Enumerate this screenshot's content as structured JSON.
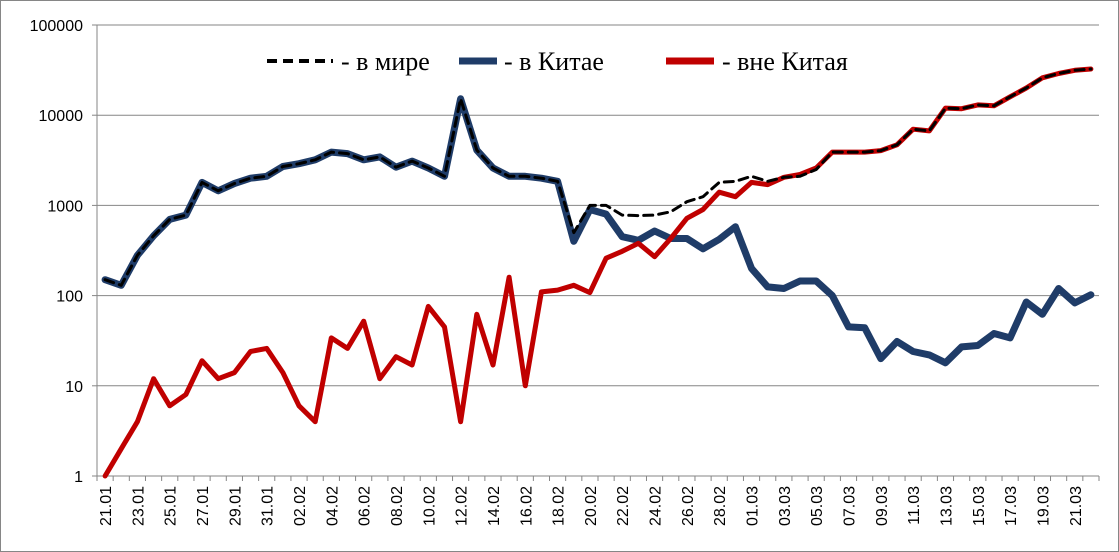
{
  "chart_data": {
    "type": "line",
    "scale": "log",
    "ylim": [
      1,
      100000
    ],
    "yticks": [
      "1",
      "10",
      "100",
      "1000",
      "10000",
      "100000"
    ],
    "grid": "horizontal",
    "legend_position": "top",
    "legend": [
      {
        "text": "- в мире",
        "color": "#000000",
        "style": "dashed"
      },
      {
        "text": "-  в Китае",
        "color": "#1F3C68",
        "style": "solid"
      },
      {
        "text": "- вне Китая",
        "color": "#C00000",
        "style": "solid"
      }
    ],
    "x": [
      "21.01",
      "22.01",
      "23.01",
      "24.01",
      "25.01",
      "26.01",
      "27.01",
      "28.01",
      "29.01",
      "30.01",
      "31.01",
      "01.02",
      "02.02",
      "03.02",
      "04.02",
      "05.02",
      "06.02",
      "07.02",
      "08.02",
      "09.02",
      "10.02",
      "11.02",
      "12.02",
      "13.02",
      "14.02",
      "15.02",
      "16.02",
      "17.02",
      "18.02",
      "19.02",
      "20.02",
      "21.02",
      "22.02",
      "23.02",
      "24.02",
      "25.02",
      "26.02",
      "27.02",
      "28.02",
      "29.02",
      "01.03",
      "02.03",
      "03.03",
      "04.03",
      "05.03",
      "06.03",
      "07.03",
      "08.03",
      "09.03",
      "10.03",
      "11.03",
      "12.03",
      "13.03",
      "14.03",
      "15.03",
      "16.03",
      "17.03",
      "18.03",
      "19.03",
      "20.03",
      "21.03",
      "22.03"
    ],
    "xtick_labels": [
      "21.01",
      "23.01",
      "25.01",
      "27.01",
      "29.01",
      "31.01",
      "02.02",
      "04.02",
      "06.02",
      "08.02",
      "10.02",
      "12.02",
      "14.02",
      "16.02",
      "18.02",
      "20.02",
      "22.02",
      "24.02",
      "26.02",
      "28.02",
      "01.03",
      "03.03",
      "05.03",
      "07.03",
      "09.03",
      "11.03",
      "13.03",
      "15.03",
      "17.03",
      "19.03",
      "21.03"
    ],
    "series": [
      {
        "name": "- в мире",
        "color": "#000000",
        "values": [
          150,
          130,
          280,
          460,
          700,
          780,
          1800,
          1450,
          1750,
          2000,
          2100,
          2700,
          2900,
          3200,
          3900,
          3750,
          3200,
          3450,
          2650,
          3100,
          2600,
          2100,
          15200,
          4100,
          2600,
          2100,
          2100,
          2000,
          1850,
          500,
          1000,
          1000,
          780,
          770,
          780,
          850,
          1100,
          1250,
          1800,
          1850,
          2100,
          1850,
          2050,
          2100,
          2500,
          3900,
          3900,
          3900,
          4050,
          4700,
          7000,
          6700,
          12000,
          11800,
          13000,
          12700,
          16000,
          20000,
          26000,
          29000,
          31500,
          32500
        ]
      },
      {
        "name": "-  в Китае",
        "color": "#1F3C68",
        "values": [
          150,
          130,
          280,
          460,
          700,
          780,
          1800,
          1450,
          1750,
          2000,
          2100,
          2700,
          2900,
          3200,
          3900,
          3750,
          3200,
          3450,
          2650,
          3100,
          2600,
          2100,
          15200,
          4100,
          2600,
          2100,
          2100,
          2000,
          1850,
          400,
          900,
          800,
          450,
          410,
          520,
          430,
          430,
          330,
          420,
          580,
          200,
          125,
          120,
          145,
          145,
          100,
          45,
          44,
          20,
          31,
          24,
          22,
          18,
          27,
          28,
          38,
          34,
          85,
          62,
          120,
          83,
          102
        ]
      },
      {
        "name": "- вне Китая",
        "color": "#C00000",
        "values": [
          1,
          2,
          4,
          12,
          6,
          8,
          19,
          12,
          14,
          24,
          26,
          14,
          6,
          4,
          34,
          26,
          52,
          12,
          21,
          17,
          76,
          45,
          4,
          62,
          17,
          160,
          10,
          110,
          115,
          130,
          108,
          260,
          310,
          380,
          270,
          430,
          720,
          900,
          1400,
          1250,
          1800,
          1700,
          2050,
          2200,
          2600,
          3900,
          3900,
          3900,
          4050,
          4700,
          7000,
          6700,
          12000,
          11800,
          13000,
          12700,
          16000,
          20000,
          26000,
          29000,
          31500,
          32500
        ]
      }
    ]
  }
}
